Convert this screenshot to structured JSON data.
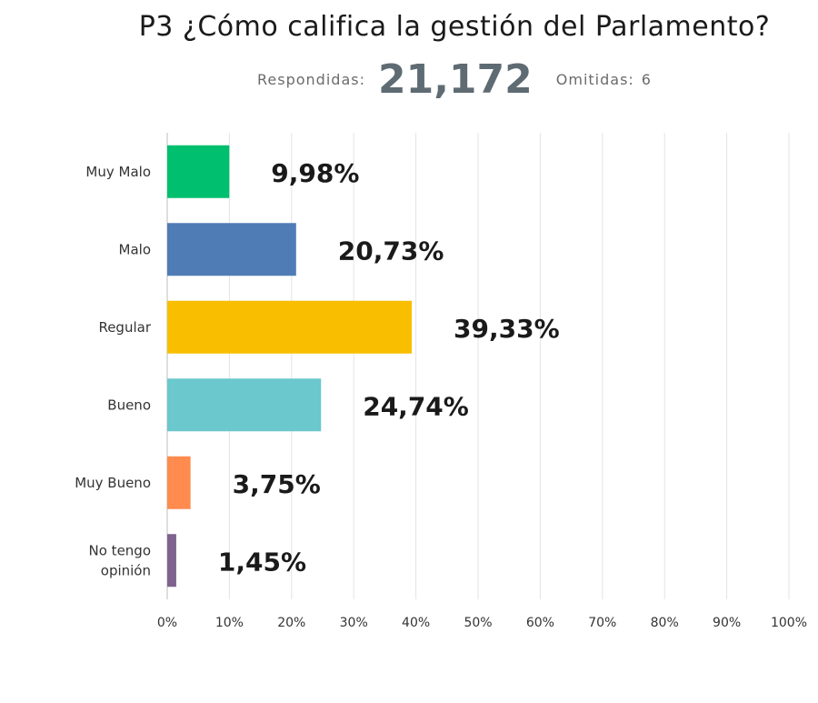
{
  "header": {
    "title": "P3 ¿Cómo califica la gestión del Parlamento?",
    "answered_label": "Respondidas:",
    "answered_value": "21,172",
    "skipped_label": "Omitidas:",
    "skipped_value": "6"
  },
  "chart_data": {
    "type": "bar",
    "orientation": "horizontal",
    "title": "P3 ¿Cómo califica la gestión del Parlamento?",
    "categories": [
      [
        "Muy Malo"
      ],
      [
        "Malo"
      ],
      [
        "Regular"
      ],
      [
        "Bueno"
      ],
      [
        "Muy Bueno"
      ],
      [
        "No tengo",
        "opinión"
      ]
    ],
    "values": [
      9.98,
      20.73,
      39.33,
      24.74,
      3.75,
      1.45
    ],
    "value_labels": [
      "9,98%",
      "20,73%",
      "39,33%",
      "24,74%",
      "3,75%",
      "1,45%"
    ],
    "colors": [
      "#00bf6f",
      "#507cb6",
      "#f9be00",
      "#6bc8cd",
      "#ff8b4f",
      "#7f628e"
    ],
    "xlim": [
      0,
      100
    ],
    "ticks": [
      0,
      10,
      20,
      30,
      40,
      50,
      60,
      70,
      80,
      90,
      100
    ],
    "tick_labels": [
      "0%",
      "10%",
      "20%",
      "30%",
      "40%",
      "50%",
      "60%",
      "70%",
      "80%",
      "90%",
      "100%"
    ],
    "grid": true,
    "xlabel": "",
    "ylabel": ""
  }
}
